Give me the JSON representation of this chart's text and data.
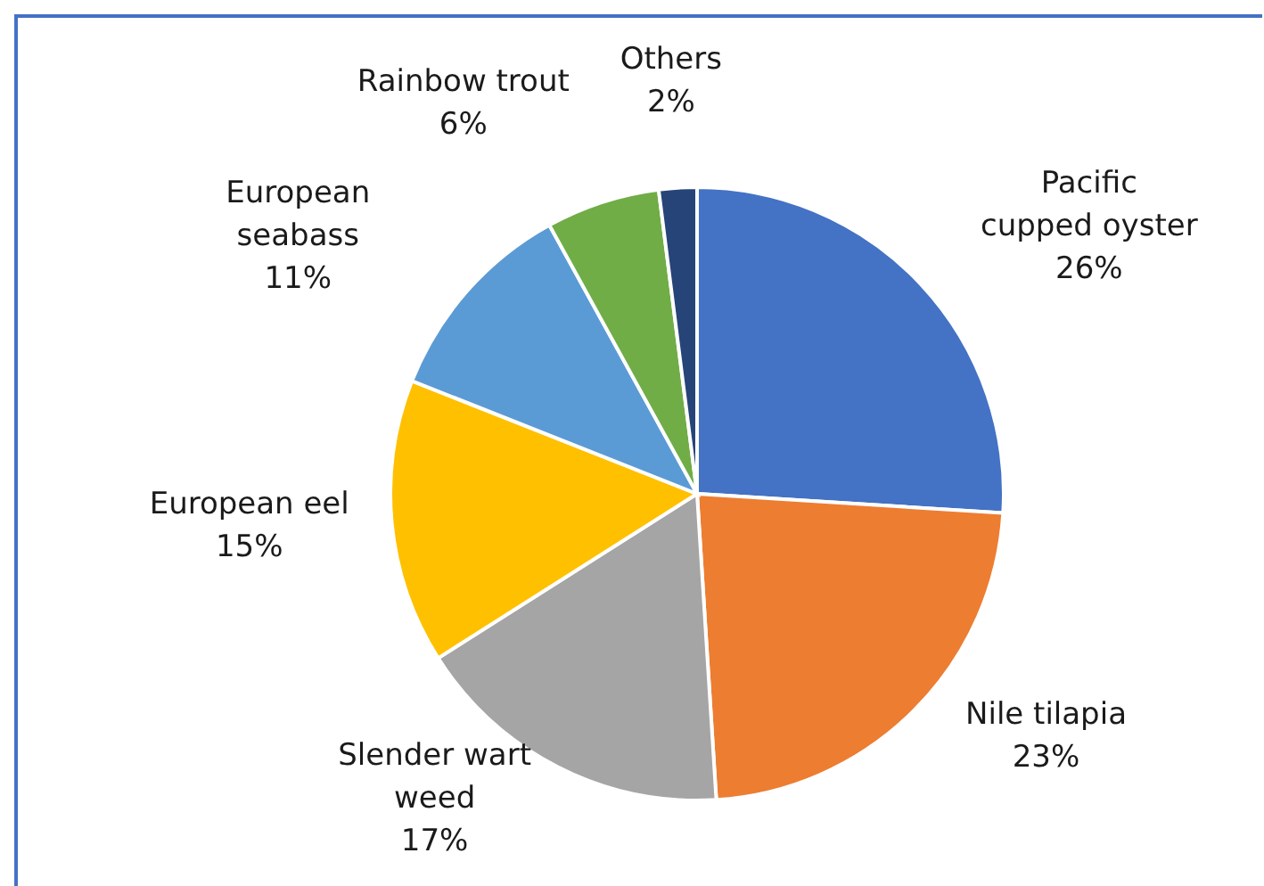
{
  "chart_data": {
    "type": "pie",
    "categories": [
      "Pacific cupped oyster",
      "Nile tilapia",
      "Slender wart weed",
      "European eel",
      "European seabass",
      "Rainbow trout",
      "Others"
    ],
    "values": [
      26,
      23,
      17,
      15,
      11,
      6,
      2
    ],
    "value_labels": [
      "26%",
      "23%",
      "17%",
      "15%",
      "11%",
      "6%",
      "2%"
    ],
    "colors": [
      "#4472c4",
      "#ed7d31",
      "#a5a5a5",
      "#ffc000",
      "#5b9bd5",
      "#70ad47",
      "#264478"
    ],
    "legend": false
  }
}
